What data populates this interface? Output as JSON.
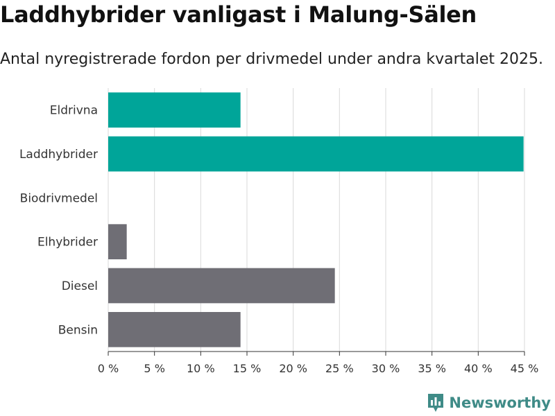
{
  "chart_data": {
    "type": "bar",
    "orientation": "horizontal",
    "title": "Laddhybrider vanligast i Malung-Sälen",
    "subtitle": "Antal nyregistrerade fordon per drivmedel under andra kvartalet 2025.",
    "categories": [
      "Eldrivna",
      "Laddhybrider",
      "Biodrivmedel",
      "Elhybrider",
      "Diesel",
      "Bensin"
    ],
    "values": [
      14.3,
      44.9,
      0,
      2.0,
      24.5,
      14.3
    ],
    "unit": "%",
    "xlim": [
      0,
      45
    ],
    "xticks": [
      0,
      5,
      10,
      15,
      20,
      25,
      30,
      35,
      40,
      45
    ],
    "xtick_labels": [
      "0 %",
      "5 %",
      "10 %",
      "15 %",
      "20 %",
      "25 %",
      "30 %",
      "35 %",
      "40 %",
      "45 %"
    ],
    "grid": true,
    "bar_colors": [
      "#00a599",
      "#00a599",
      "#00a599",
      "#6f6e75",
      "#6f6e75",
      "#6f6e75"
    ]
  },
  "branding": {
    "logo_text": "Newsworthy",
    "logo_color": "#3f8b87",
    "logo_icon": "bar-chart-badge-icon"
  }
}
